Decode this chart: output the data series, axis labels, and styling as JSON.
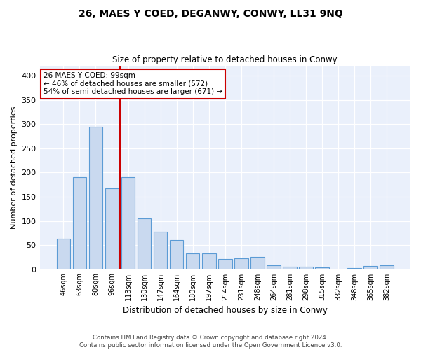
{
  "title": "26, MAES Y COED, DEGANWY, CONWY, LL31 9NQ",
  "subtitle": "Size of property relative to detached houses in Conwy",
  "xlabel": "Distribution of detached houses by size in Conwy",
  "ylabel": "Number of detached properties",
  "categories": [
    "46sqm",
    "63sqm",
    "80sqm",
    "96sqm",
    "113sqm",
    "130sqm",
    "147sqm",
    "164sqm",
    "180sqm",
    "197sqm",
    "214sqm",
    "231sqm",
    "248sqm",
    "264sqm",
    "281sqm",
    "298sqm",
    "315sqm",
    "332sqm",
    "348sqm",
    "365sqm",
    "382sqm"
  ],
  "values": [
    63,
    190,
    295,
    168,
    190,
    105,
    78,
    60,
    33,
    33,
    21,
    22,
    26,
    8,
    5,
    5,
    4,
    0,
    2,
    7,
    8
  ],
  "bar_color": "#c9d9ef",
  "bar_edge_color": "#5b9bd5",
  "red_line_index": 3.5,
  "red_line_color": "#cc0000",
  "ylim": [
    0,
    420
  ],
  "yticks": [
    0,
    50,
    100,
    150,
    200,
    250,
    300,
    350,
    400
  ],
  "annotation_text": "26 MAES Y COED: 99sqm\n← 46% of detached houses are smaller (572)\n54% of semi-detached houses are larger (671) →",
  "annotation_box_color": "#ffffff",
  "annotation_box_edge": "#cc0000",
  "footer_text": "Contains HM Land Registry data © Crown copyright and database right 2024.\nContains public sector information licensed under the Open Government Licence v3.0.",
  "background_color": "#eaf0fb",
  "grid_color": "#ffffff"
}
